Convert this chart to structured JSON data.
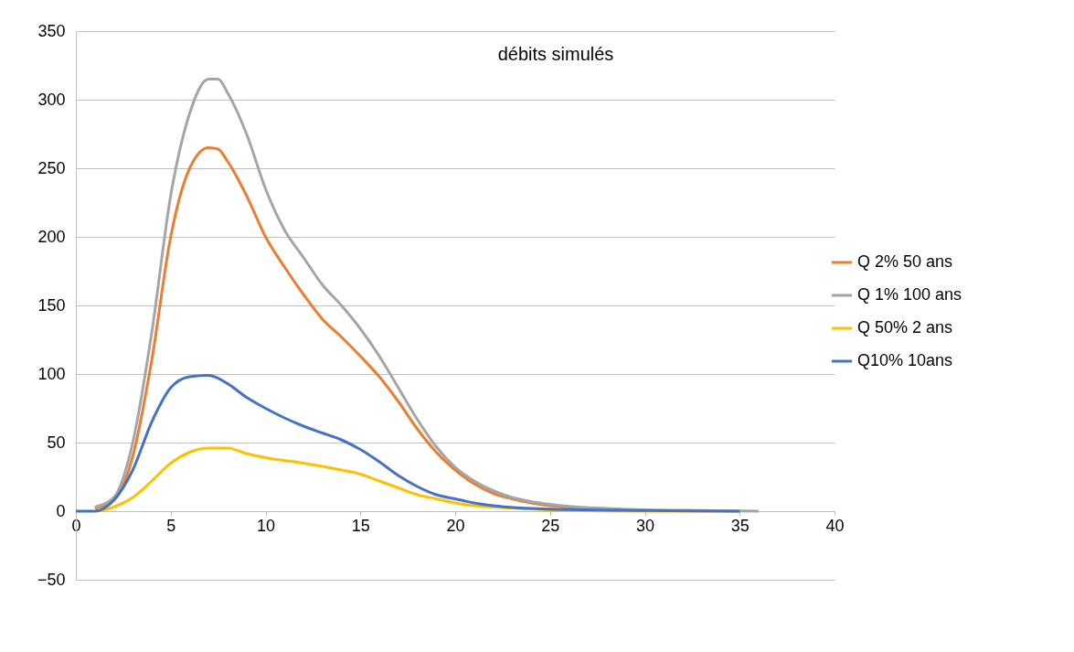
{
  "chart_data": {
    "type": "line",
    "title": "débits simulés",
    "xlim": [
      0,
      40
    ],
    "xticks": [
      0,
      5,
      10,
      15,
      20,
      25,
      30,
      35,
      40
    ],
    "ylim": [
      -50,
      350
    ],
    "yticks": [
      -50,
      0,
      50,
      100,
      150,
      200,
      250,
      300,
      350
    ],
    "grid": "y",
    "legend": "right",
    "line_style": "solid",
    "marker": "none",
    "series": [
      {
        "name": "Q 2%   50 ans",
        "color": "#ed7d31",
        "x": [
          1,
          2,
          3,
          4,
          5,
          6,
          7,
          7.5,
          8,
          9,
          10,
          11,
          12,
          13,
          14,
          15,
          16,
          17,
          18,
          19,
          20,
          21,
          22,
          23,
          24,
          25,
          28
        ],
        "values": [
          2,
          8,
          40,
          110,
          200,
          250,
          265,
          264,
          255,
          230,
          200,
          178,
          158,
          140,
          127,
          113,
          98,
          80,
          60,
          43,
          30,
          20,
          13,
          9,
          6,
          4,
          1.5
        ]
      },
      {
        "name": "Q 1%  100 ans",
        "color": "#a5a5a5",
        "x": [
          1,
          2,
          3,
          4,
          5,
          6,
          7,
          7.5,
          8,
          9,
          10,
          11,
          12,
          13,
          14,
          15,
          16,
          17,
          18,
          19,
          20,
          21,
          22,
          23,
          24,
          25,
          26,
          28,
          30,
          33,
          36
        ],
        "values": [
          3,
          10,
          50,
          130,
          230,
          290,
          315,
          315,
          305,
          275,
          235,
          205,
          185,
          165,
          150,
          133,
          113,
          90,
          67,
          47,
          32,
          22,
          15,
          10,
          7,
          5,
          3.5,
          2,
          1,
          0.5,
          0
        ]
      },
      {
        "name": "Q 50% 2 ans",
        "color": "#ffc000",
        "x": [
          1,
          2,
          3,
          4,
          5,
          6,
          7,
          8,
          9,
          10,
          12,
          14,
          15,
          16,
          17,
          18,
          19,
          20,
          21,
          22,
          25,
          30,
          35
        ],
        "values": [
          0,
          3,
          10,
          22,
          35,
          43,
          46,
          46,
          42,
          39,
          35,
          30,
          27,
          22,
          17,
          12,
          9,
          6,
          4,
          3,
          1,
          0,
          0
        ]
      },
      {
        "name": "Q10% 10ans",
        "color": "#4472c4",
        "x": [
          0,
          1,
          2,
          3,
          4,
          5,
          6,
          7,
          8,
          9,
          10,
          11,
          12,
          13,
          14,
          15,
          16,
          17,
          18,
          19,
          20,
          21,
          22,
          25,
          30,
          35
        ],
        "values": [
          0,
          0,
          8,
          30,
          65,
          90,
          98,
          99,
          93,
          83,
          75,
          68,
          62,
          57,
          52,
          45,
          36,
          26,
          18,
          12,
          9,
          6,
          4,
          1.5,
          0.5,
          0
        ]
      }
    ]
  }
}
